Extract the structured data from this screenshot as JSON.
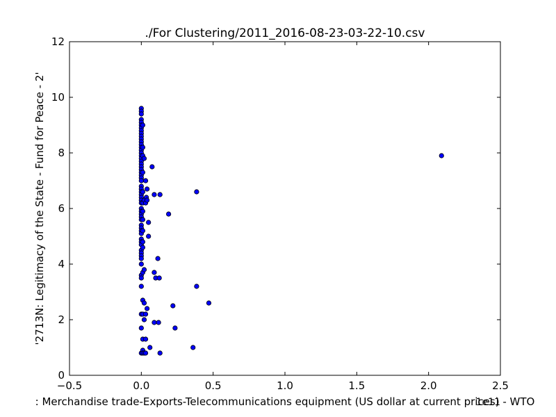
{
  "chart_data": {
    "type": "scatter",
    "title": "./For Clustering/2011_2016-08-23-03-22-10.csv",
    "xlabel": ": Merchandise trade-Exports-Telecommunications equipment (US dollar at current prices) - WTO",
    "ylabel": "'2713N: Legitimacy of the State - Fund for Peace - 2'",
    "x_offset_label": "1e11",
    "x_ticks": [
      "−0.5",
      "0.0",
      "0.5",
      "1.0",
      "1.5",
      "2.0",
      "2.5"
    ],
    "y_ticks": [
      "0",
      "2",
      "4",
      "6",
      "8",
      "10",
      "12"
    ],
    "xlim": [
      -0.5,
      2.5
    ],
    "ylim": [
      0,
      12
    ],
    "grid": false,
    "marker_color": "#0000ff",
    "series": [
      {
        "points": [
          [
            0.0,
            9.6
          ],
          [
            0.0,
            9.5
          ],
          [
            0.0,
            9.4
          ],
          [
            0.0,
            9.2
          ],
          [
            0.0,
            9.1
          ],
          [
            0.0,
            9.0
          ],
          [
            0.0,
            8.9
          ],
          [
            0.0,
            8.8
          ],
          [
            0.0,
            8.7
          ],
          [
            0.0,
            8.6
          ],
          [
            0.0,
            8.5
          ],
          [
            0.0,
            8.4
          ],
          [
            0.0,
            8.3
          ],
          [
            0.0,
            8.2
          ],
          [
            0.0,
            8.1
          ],
          [
            0.0,
            8.0
          ],
          [
            0.0,
            7.9
          ],
          [
            0.0,
            7.8
          ],
          [
            0.0,
            7.7
          ],
          [
            0.0,
            7.6
          ],
          [
            0.0,
            7.5
          ],
          [
            0.0,
            7.4
          ],
          [
            0.0,
            7.3
          ],
          [
            0.0,
            7.2
          ],
          [
            0.0,
            7.1
          ],
          [
            0.0,
            7.0
          ],
          [
            0.0,
            6.8
          ],
          [
            0.0,
            6.7
          ],
          [
            0.0,
            6.6
          ],
          [
            0.0,
            6.5
          ],
          [
            0.0,
            6.4
          ],
          [
            0.0,
            6.3
          ],
          [
            0.0,
            6.2
          ],
          [
            0.0,
            6.0
          ],
          [
            0.0,
            5.9
          ],
          [
            0.0,
            5.8
          ],
          [
            0.0,
            5.7
          ],
          [
            0.0,
            5.6
          ],
          [
            0.0,
            5.4
          ],
          [
            0.0,
            5.3
          ],
          [
            0.0,
            5.2
          ],
          [
            0.0,
            5.1
          ],
          [
            0.0,
            4.9
          ],
          [
            0.0,
            4.8
          ],
          [
            0.0,
            4.7
          ],
          [
            0.0,
            4.5
          ],
          [
            0.0,
            4.4
          ],
          [
            0.0,
            4.3
          ],
          [
            0.0,
            4.2
          ],
          [
            0.0,
            4.0
          ],
          [
            0.0,
            3.6
          ],
          [
            0.0,
            3.5
          ],
          [
            0.0,
            3.2
          ],
          [
            0.0,
            2.2
          ],
          [
            0.0,
            1.7
          ],
          [
            0.0,
            0.8
          ],
          [
            0.01,
            9.0
          ],
          [
            0.01,
            8.2
          ],
          [
            0.01,
            7.9
          ],
          [
            0.01,
            7.3
          ],
          [
            0.01,
            6.6
          ],
          [
            0.01,
            6.2
          ],
          [
            0.01,
            5.9
          ],
          [
            0.01,
            5.6
          ],
          [
            0.01,
            5.2
          ],
          [
            0.01,
            4.8
          ],
          [
            0.01,
            4.6
          ],
          [
            0.01,
            3.7
          ],
          [
            0.01,
            2.7
          ],
          [
            0.01,
            2.2
          ],
          [
            0.01,
            1.3
          ],
          [
            0.01,
            0.9
          ],
          [
            0.01,
            0.8
          ],
          [
            0.02,
            7.8
          ],
          [
            0.02,
            3.8
          ],
          [
            0.02,
            2.6
          ],
          [
            0.02,
            2.0
          ],
          [
            0.02,
            0.8
          ],
          [
            0.02,
            6.3
          ],
          [
            0.03,
            7.0
          ],
          [
            0.03,
            0.8
          ],
          [
            0.03,
            1.3
          ],
          [
            0.03,
            2.2
          ],
          [
            0.03,
            6.2
          ],
          [
            0.035,
            6.4
          ],
          [
            0.04,
            6.3
          ],
          [
            0.04,
            6.7
          ],
          [
            0.04,
            2.4
          ],
          [
            0.05,
            5.5
          ],
          [
            0.05,
            5.0
          ],
          [
            0.06,
            1.0
          ],
          [
            0.075,
            7.5
          ],
          [
            0.09,
            6.5
          ],
          [
            0.09,
            3.7
          ],
          [
            0.09,
            1.9
          ],
          [
            0.1,
            3.5
          ],
          [
            0.115,
            4.2
          ],
          [
            0.12,
            1.9
          ],
          [
            0.125,
            3.5
          ],
          [
            0.13,
            6.5
          ],
          [
            0.13,
            0.8
          ],
          [
            0.19,
            5.8
          ],
          [
            0.22,
            2.5
          ],
          [
            0.235,
            1.7
          ],
          [
            0.36,
            1.0
          ],
          [
            0.385,
            6.6
          ],
          [
            0.385,
            3.2
          ],
          [
            0.47,
            2.6
          ],
          [
            2.09,
            7.9
          ]
        ]
      }
    ]
  }
}
